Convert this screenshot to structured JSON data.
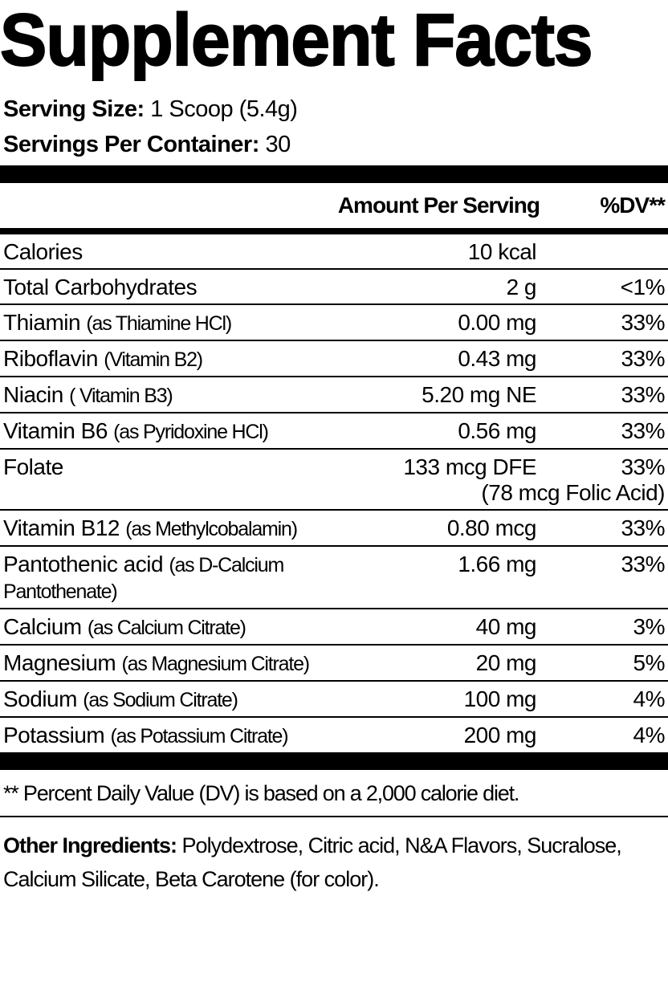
{
  "header": {
    "title": "Supplement Facts",
    "serving_size": {
      "label": "Serving Size:",
      "value": "1 Scoop (5.4g)"
    },
    "servings_per_container": {
      "label": "Servings Per Container:",
      "value": "30"
    }
  },
  "table": {
    "columns": [
      "Amount Per Serving",
      "%DV**"
    ],
    "rows": [
      {
        "name": "Calories",
        "amount": "10 kcal"
      },
      {
        "name": "Total Carbohydrates",
        "amount": "2 g",
        "dv": "<1%"
      },
      {
        "name": "Thiamin",
        "detail": "(as Thiamine HCl)",
        "amount": "0.00 mg",
        "dv": "33%"
      },
      {
        "name": "Riboflavin",
        "detail": "(Vitamin B2)",
        "amount": "0.43 mg",
        "dv": "33%"
      },
      {
        "name": "Niacin",
        "detail": "( Vitamin B3)",
        "amount": "5.20 mg NE",
        "dv": "33%"
      },
      {
        "name": "Vitamin B6",
        "detail": "(as Pyridoxine HCl)",
        "amount": "0.56 mg",
        "dv": "33%"
      },
      {
        "name": "Folate",
        "amount": "133 mcg DFE",
        "dv": "33%",
        "extra": "(78 mcg Folic Acid)"
      },
      {
        "name": "Vitamin B12",
        "detail": "(as Methylcobalamin)",
        "amount": "0.80 mcg",
        "dv": "33%"
      },
      {
        "name": "Pantothenic acid",
        "detail": "(as D-Calcium Pantothenate)",
        "amount": "1.66 mg",
        "dv": "33%"
      },
      {
        "name": "Calcium",
        "detail": "(as Calcium Citrate)",
        "amount": "40 mg",
        "dv": "3%"
      },
      {
        "name": "Magnesium",
        "detail": "(as Magnesium Citrate)",
        "amount": "20 mg",
        "dv": "5%"
      },
      {
        "name": "Sodium",
        "detail": "(as Sodium Citrate)",
        "amount": "100 mg",
        "dv": "4%"
      },
      {
        "name": "Potassium",
        "detail": "(as Potassium Citrate)",
        "amount": "200 mg",
        "dv": "4%"
      }
    ]
  },
  "footnote": "** Percent Daily Value (DV) is based on a 2,000 calorie diet.",
  "other_ingredients": {
    "label": "Other Ingredients:",
    "value": "Polydextrose, Citric acid, N&A Flavors, Sucralose, Calcium Silicate, Beta Carotene (for color)."
  }
}
